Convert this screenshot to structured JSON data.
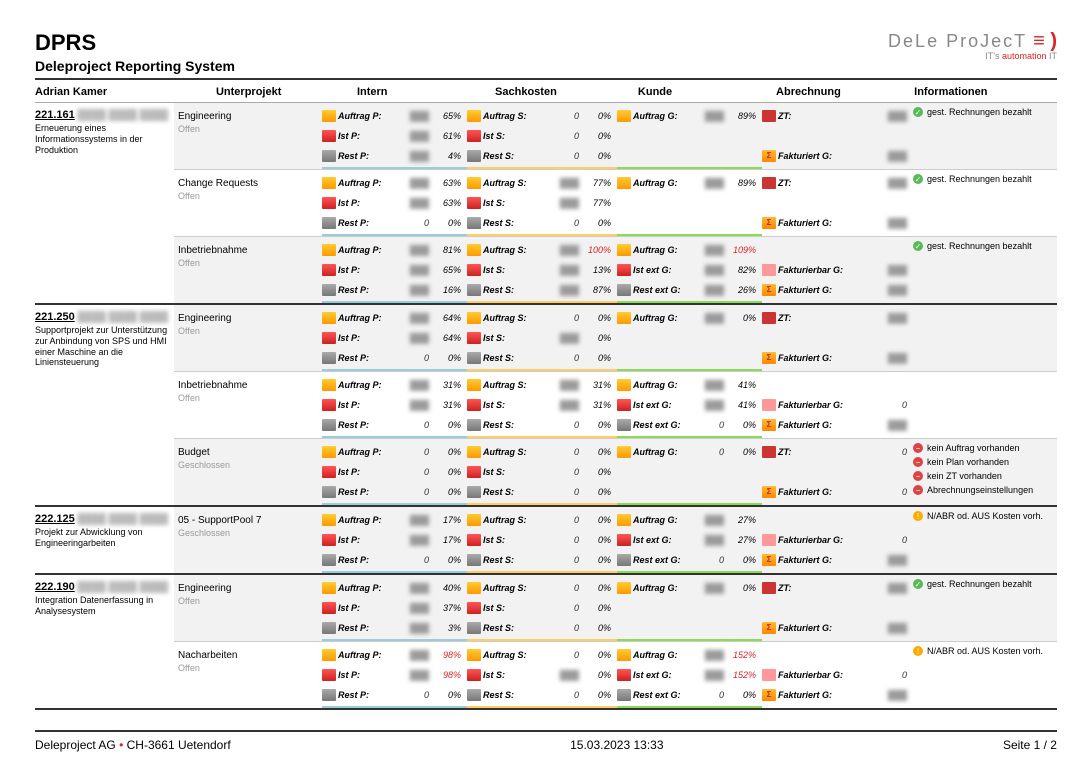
{
  "header": {
    "title": "DPRS",
    "subtitle": "Deleproject Reporting System",
    "logo_text": "DeLe ProJecT",
    "logo_sub": "IT's automation IT"
  },
  "columns": {
    "person": "Adrian Kamer",
    "sub": "Unterprojekt",
    "intern": "Intern",
    "sach": "Sachkosten",
    "kunde": "Kunde",
    "abr": "Abrechnung",
    "info": "Informationen"
  },
  "labels": {
    "auftrag_p": "Auftrag P:",
    "ist_p": "Ist P:",
    "rest_p": "Rest P:",
    "auftrag_s": "Auftrag S:",
    "ist_s": "Ist S:",
    "rest_s": "Rest S:",
    "auftrag_g": "Auftrag G:",
    "ist_ext_g": "Ist ext G:",
    "rest_ext_g": "Rest ext G:",
    "zt": "ZT:",
    "fakt_g": "Fakturiert G:",
    "fakt_bar_g": "Fakturierbar G:"
  },
  "info_msgs": {
    "bez": "gest. Rechnungen bezahlt",
    "no_auftrag": "kein Auftrag vorhanden",
    "no_plan": "kein Plan vorhanden",
    "no_zt": "kein ZT vorhanden",
    "abr_einst": "Abrechnungseinstellungen",
    "nabr": "N/ABR od. AUS Kosten vorh."
  },
  "status": {
    "offen": "Offen",
    "geschlossen": "Geschlossen"
  },
  "projects": [
    {
      "num": "221.161",
      "desc": "Erneuerung eines Informationssystems in der Produktion",
      "subs": [
        {
          "name": "Engineering",
          "status": "offen",
          "alt": true,
          "intern": [
            [
              "auftrag_p",
              "65%",
              false
            ],
            [
              "ist_p",
              "61%",
              false
            ],
            [
              "rest_p",
              "4%",
              false
            ]
          ],
          "sach": [
            [
              "auftrag_s",
              "0%",
              false,
              "0"
            ],
            [
              "ist_s",
              "0%",
              false,
              "0"
            ],
            [
              "rest_s",
              "0%",
              false,
              "0"
            ]
          ],
          "kunde": [
            [
              "auftrag_g",
              "89%",
              false
            ]
          ],
          "abr": [
            [
              "zt",
              "",
              false
            ],
            [
              "",
              null,
              null
            ],
            [
              "fakt_g",
              "",
              false
            ]
          ],
          "info": [
            [
              "g",
              "bez"
            ]
          ]
        },
        {
          "name": "Change Requests",
          "status": "offen",
          "alt": false,
          "intern": [
            [
              "auftrag_p",
              "63%",
              false
            ],
            [
              "ist_p",
              "63%",
              false
            ],
            [
              "rest_p",
              "0%",
              false,
              "0"
            ]
          ],
          "sach": [
            [
              "auftrag_s",
              "77%",
              false
            ],
            [
              "ist_s",
              "77%",
              false
            ],
            [
              "rest_s",
              "0%",
              false,
              "0"
            ]
          ],
          "kunde": [
            [
              "auftrag_g",
              "89%",
              false
            ]
          ],
          "abr": [
            [
              "zt",
              "",
              false
            ],
            [
              "",
              null,
              null
            ],
            [
              "fakt_g",
              "",
              false
            ]
          ],
          "info": [
            [
              "g",
              "bez"
            ]
          ]
        },
        {
          "name": "Inbetriebnahme",
          "status": "offen",
          "alt": true,
          "intern": [
            [
              "auftrag_p",
              "81%",
              false
            ],
            [
              "ist_p",
              "65%",
              false
            ],
            [
              "rest_p",
              "16%",
              false
            ]
          ],
          "sach": [
            [
              "auftrag_s",
              "100%",
              true
            ],
            [
              "ist_s",
              "13%",
              false
            ],
            [
              "rest_s",
              "87%",
              false
            ]
          ],
          "kunde": [
            [
              "auftrag_g",
              "109%",
              true
            ],
            [
              "ist_ext_g",
              "82%",
              false
            ],
            [
              "rest_ext_g",
              "26%",
              false
            ]
          ],
          "abr": [
            [
              "",
              null,
              null
            ],
            [
              "fakt_bar_g",
              "",
              false
            ],
            [
              "fakt_g",
              "",
              false
            ]
          ],
          "info": [
            [
              "g",
              "bez"
            ]
          ]
        }
      ]
    },
    {
      "num": "221.250",
      "desc": "Supportprojekt zur Unterstützung zur Anbindung von SPS und HMI einer Maschine an die Liniensteuerung",
      "subs": [
        {
          "name": "Engineering",
          "status": "offen",
          "alt": true,
          "intern": [
            [
              "auftrag_p",
              "64%",
              false
            ],
            [
              "ist_p",
              "64%",
              false
            ],
            [
              "rest_p",
              "0%",
              false,
              "0"
            ]
          ],
          "sach": [
            [
              "auftrag_s",
              "0%",
              false,
              "0"
            ],
            [
              "ist_s",
              "0%",
              false
            ],
            [
              "rest_s",
              "0%",
              false,
              "0"
            ]
          ],
          "kunde": [
            [
              "auftrag_g",
              "0%",
              false
            ]
          ],
          "abr": [
            [
              "zt",
              "",
              false
            ],
            [
              "",
              null,
              null
            ],
            [
              "fakt_g",
              "",
              false
            ]
          ],
          "info": []
        },
        {
          "name": "Inbetriebnahme",
          "status": "offen",
          "alt": false,
          "intern": [
            [
              "auftrag_p",
              "31%",
              false
            ],
            [
              "ist_p",
              "31%",
              false
            ],
            [
              "rest_p",
              "0%",
              false,
              "0"
            ]
          ],
          "sach": [
            [
              "auftrag_s",
              "31%",
              false
            ],
            [
              "ist_s",
              "31%",
              false
            ],
            [
              "rest_s",
              "0%",
              false,
              "0"
            ]
          ],
          "kunde": [
            [
              "auftrag_g",
              "41%",
              false
            ],
            [
              "ist_ext_g",
              "41%",
              false
            ],
            [
              "rest_ext_g",
              "0%",
              false,
              "0"
            ]
          ],
          "abr": [
            [
              "",
              null,
              null
            ],
            [
              "fakt_bar_g",
              "0",
              false,
              "0"
            ],
            [
              "fakt_g",
              "",
              false
            ]
          ],
          "info": []
        },
        {
          "name": "Budget",
          "status": "geschlossen",
          "alt": true,
          "intern": [
            [
              "auftrag_p",
              "0%",
              false,
              "0"
            ],
            [
              "ist_p",
              "0%",
              false,
              "0"
            ],
            [
              "rest_p",
              "0%",
              false,
              "0"
            ]
          ],
          "sach": [
            [
              "auftrag_s",
              "0%",
              false,
              "0"
            ],
            [
              "ist_s",
              "0%",
              false,
              "0"
            ],
            [
              "rest_s",
              "0%",
              false,
              "0"
            ]
          ],
          "kunde": [
            [
              "auftrag_g",
              "0%",
              false,
              "0"
            ]
          ],
          "abr": [
            [
              "zt",
              "0",
              false,
              "0"
            ],
            [
              "",
              null,
              null
            ],
            [
              "fakt_g",
              "0",
              false,
              "0"
            ]
          ],
          "info": [
            [
              "r",
              "no_auftrag"
            ],
            [
              "r",
              "no_plan"
            ],
            [
              "r",
              "no_zt"
            ],
            [
              "r",
              "abr_einst"
            ]
          ]
        }
      ]
    },
    {
      "num": "222.125",
      "desc": "Projekt zur Abwicklung von Engineeringarbeiten",
      "subs": [
        {
          "name": "05 - SupportPool 7",
          "status": "geschlossen",
          "alt": true,
          "intern": [
            [
              "auftrag_p",
              "17%",
              false
            ],
            [
              "ist_p",
              "17%",
              false
            ],
            [
              "rest_p",
              "0%",
              false,
              "0"
            ]
          ],
          "sach": [
            [
              "auftrag_s",
              "0%",
              false,
              "0"
            ],
            [
              "ist_s",
              "0%",
              false,
              "0"
            ],
            [
              "rest_s",
              "0%",
              false,
              "0"
            ]
          ],
          "kunde": [
            [
              "auftrag_g",
              "27%",
              false
            ],
            [
              "ist_ext_g",
              "27%",
              false
            ],
            [
              "rest_ext_g",
              "0%",
              false,
              "0"
            ]
          ],
          "abr": [
            [
              "",
              null,
              null
            ],
            [
              "fakt_bar_g",
              "0",
              false,
              "0"
            ],
            [
              "fakt_g",
              "",
              false
            ]
          ],
          "info": [
            [
              "y",
              "nabr"
            ]
          ]
        }
      ]
    },
    {
      "num": "222.190",
      "desc": "Integration Datenerfassung in Analysesystem",
      "subs": [
        {
          "name": "Engineering",
          "status": "offen",
          "alt": true,
          "intern": [
            [
              "auftrag_p",
              "40%",
              false
            ],
            [
              "ist_p",
              "37%",
              false
            ],
            [
              "rest_p",
              "3%",
              false
            ]
          ],
          "sach": [
            [
              "auftrag_s",
              "0%",
              false,
              "0"
            ],
            [
              "ist_s",
              "0%",
              false,
              "0"
            ],
            [
              "rest_s",
              "0%",
              false,
              "0"
            ]
          ],
          "kunde": [
            [
              "auftrag_g",
              "0%",
              false
            ]
          ],
          "abr": [
            [
              "zt",
              "",
              false
            ],
            [
              "",
              null,
              null
            ],
            [
              "fakt_g",
              "",
              false
            ]
          ],
          "info": [
            [
              "g",
              "bez"
            ]
          ]
        },
        {
          "name": "Nacharbeiten",
          "status": "offen",
          "alt": false,
          "intern": [
            [
              "auftrag_p",
              "98%",
              true
            ],
            [
              "ist_p",
              "98%",
              true
            ],
            [
              "rest_p",
              "0%",
              false,
              "0"
            ]
          ],
          "sach": [
            [
              "auftrag_s",
              "0%",
              false,
              "0"
            ],
            [
              "ist_s",
              "0%",
              false
            ],
            [
              "rest_s",
              "0%",
              false,
              "0"
            ]
          ],
          "kunde": [
            [
              "auftrag_g",
              "152%",
              true
            ],
            [
              "ist_ext_g",
              "152%",
              true
            ],
            [
              "rest_ext_g",
              "0%",
              false,
              "0"
            ]
          ],
          "abr": [
            [
              "",
              null,
              null
            ],
            [
              "fakt_bar_g",
              "0",
              false,
              "0"
            ],
            [
              "fakt_g",
              "",
              false
            ]
          ],
          "info": [
            [
              "y",
              "nabr"
            ]
          ]
        }
      ]
    }
  ],
  "footer": {
    "company": "Deleproject AG",
    "sep": "•",
    "addr": "CH-3661 Uetendorf",
    "date": "15.03.2023 13:33",
    "page": "Seite  1 / 2"
  }
}
